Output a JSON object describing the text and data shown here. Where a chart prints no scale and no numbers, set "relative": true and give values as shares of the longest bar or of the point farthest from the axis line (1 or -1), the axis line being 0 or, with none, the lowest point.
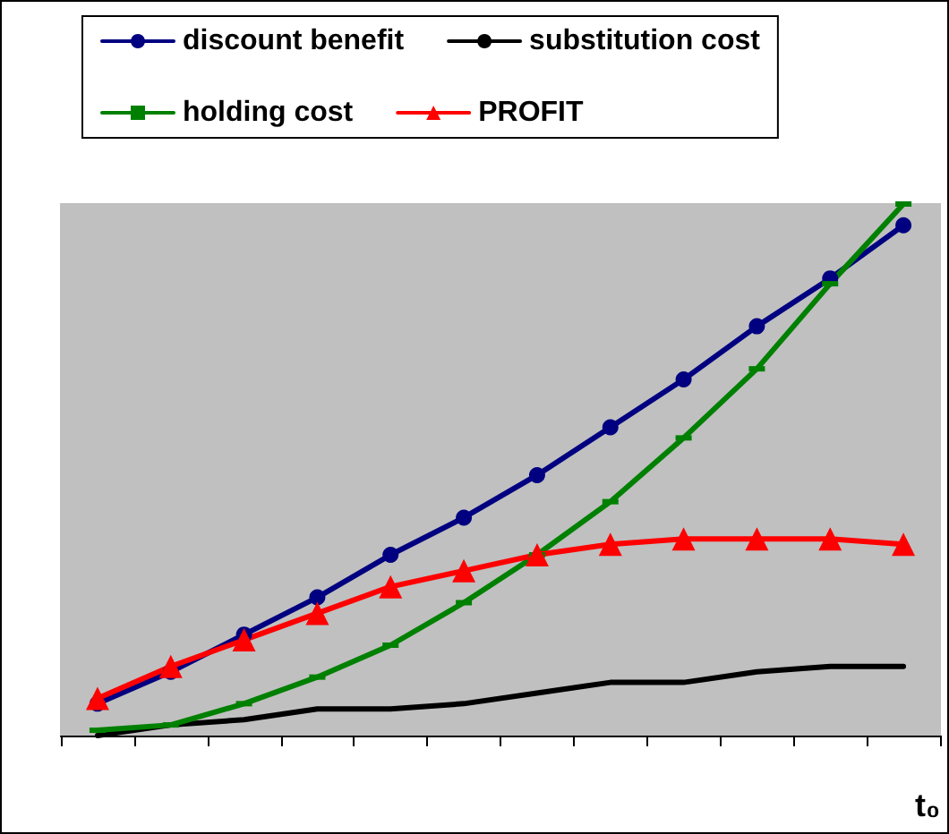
{
  "chart_data": {
    "type": "line",
    "relative": true,
    "xlabel": "t₀",
    "categories": [
      null,
      null,
      null,
      null,
      null,
      null,
      null,
      null,
      null,
      null,
      null,
      null
    ],
    "series": [
      {
        "name": "discount benefit",
        "color": "#000080",
        "marker": "circle",
        "values": [
          0.06,
          0.12,
          0.19,
          0.26,
          0.34,
          0.41,
          0.49,
          0.58,
          0.67,
          0.77,
          0.86,
          0.96
        ]
      },
      {
        "name": "substitution cost",
        "color": "#000000",
        "marker": "none",
        "values": [
          0.0,
          0.02,
          0.03,
          0.05,
          0.05,
          0.06,
          0.08,
          0.1,
          0.1,
          0.12,
          0.13,
          0.13
        ]
      },
      {
        "name": "holding cost",
        "color": "#008000",
        "marker": "square",
        "values": [
          0.01,
          0.02,
          0.06,
          0.11,
          0.17,
          0.25,
          0.34,
          0.44,
          0.56,
          0.69,
          0.85,
          1
        ]
      },
      {
        "name": "PROFIT",
        "color": "#ff0000",
        "marker": "triangle",
        "values": [
          0.07,
          0.13,
          0.18,
          0.23,
          0.28,
          0.31,
          0.34,
          0.36,
          0.37,
          0.37,
          0.37,
          0.36
        ]
      }
    ],
    "grid": false,
    "legend": "top",
    "line_style": "solid"
  }
}
